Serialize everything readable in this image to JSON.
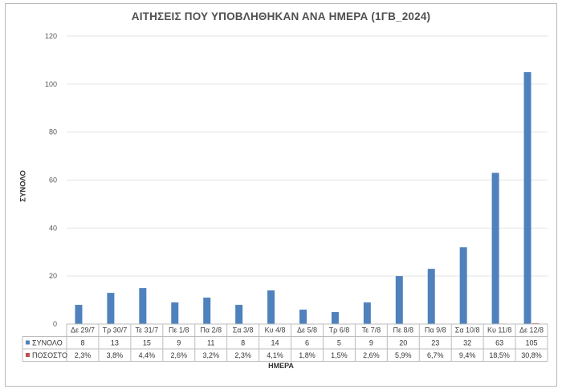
{
  "chart_data": {
    "type": "bar",
    "title": "ΑΙΤΗΣΕΙΣ ΠΟΥ ΥΠΟΒΛΗΘΗΚΑΝ ΑΝΑ ΗΜΕΡΑ (1ΓΒ_2024)",
    "xlabel": "ΗΜΕΡΑ",
    "ylabel": "ΣΥΝΟΛΟ",
    "ylim": [
      0,
      120
    ],
    "yticks": [
      0,
      20,
      40,
      60,
      80,
      100,
      120
    ],
    "grid": true,
    "legend": "data-table",
    "categories": [
      "Δε 29/7",
      "Τρ 30/7",
      "Τε 31/7",
      "Πε 1/8",
      "Πα 2/8",
      "Σα 3/8",
      "Κυ 4/8",
      "Δε 5/8",
      "Τρ 6/8",
      "Τε 7/8",
      "Πε 8/8",
      "Πα 9/8",
      "Σα 10/8",
      "Κυ 11/8",
      "Δε 12/8"
    ],
    "series": [
      {
        "name": "ΣΥΝΟΛΟ",
        "color": "#4f81bd",
        "values": [
          8,
          13,
          15,
          9,
          11,
          8,
          14,
          6,
          5,
          9,
          20,
          23,
          32,
          63,
          105
        ],
        "labels": [
          "8",
          "13",
          "15",
          "9",
          "11",
          "8",
          "14",
          "6",
          "5",
          "9",
          "20",
          "23",
          "32",
          "63",
          "105"
        ]
      },
      {
        "name": "ΠΟΣΟΣΤΟ",
        "color": "#c0504d",
        "values": [
          0.023,
          0.038,
          0.044,
          0.026,
          0.032,
          0.023,
          0.041,
          0.018,
          0.015,
          0.026,
          0.059,
          0.067,
          0.094,
          0.185,
          0.308
        ],
        "labels": [
          "2,3%",
          "3,8%",
          "4,4%",
          "2,6%",
          "3,2%",
          "2,3%",
          "4,1%",
          "1,8%",
          "1,5%",
          "2,6%",
          "5,9%",
          "6,7%",
          "9,4%",
          "18,5%",
          "30,8%"
        ]
      }
    ]
  }
}
